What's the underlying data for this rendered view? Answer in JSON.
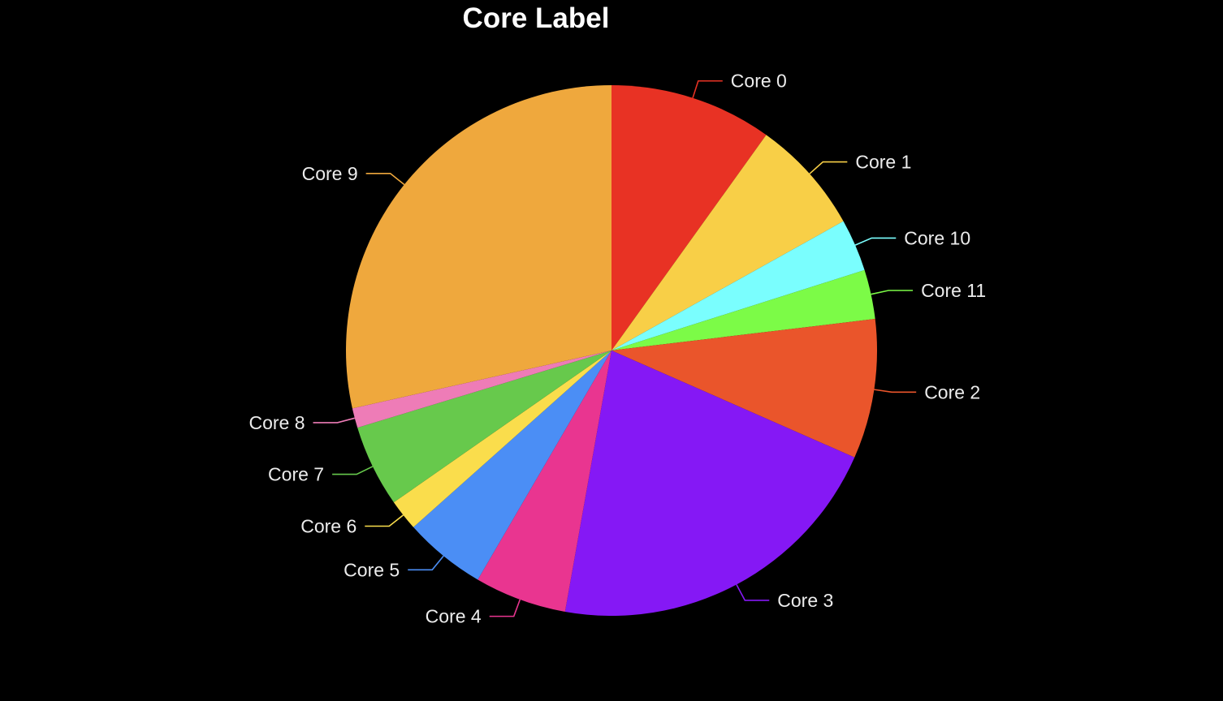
{
  "chart_data": {
    "type": "pie",
    "title": "Core Label",
    "start_angle_deg": 0,
    "direction": "clockwise",
    "slices": [
      {
        "label": "Core 0",
        "value": 9.9,
        "color": "#e83224"
      },
      {
        "label": "Core 1",
        "value": 7.0,
        "color": "#f8cf47"
      },
      {
        "label": "Core 10",
        "value": 3.2,
        "color": "#7afefe"
      },
      {
        "label": "Core 11",
        "value": 3.0,
        "color": "#7cfb47"
      },
      {
        "label": "Core 2",
        "value": 8.5,
        "color": "#ea552b"
      },
      {
        "label": "Core 3",
        "value": 21.2,
        "color": "#8518f5"
      },
      {
        "label": "Core 4",
        "value": 5.6,
        "color": "#e93590"
      },
      {
        "label": "Core 5",
        "value": 5.0,
        "color": "#4b8ef5"
      },
      {
        "label": "Core 6",
        "value": 1.9,
        "color": "#fadd4c"
      },
      {
        "label": "Core 7",
        "value": 5.0,
        "color": "#67c94c"
      },
      {
        "label": "Core 8",
        "value": 1.2,
        "color": "#ee7cb7"
      },
      {
        "label": "Core 9",
        "value": 28.5,
        "color": "#efa83d"
      }
    ]
  }
}
